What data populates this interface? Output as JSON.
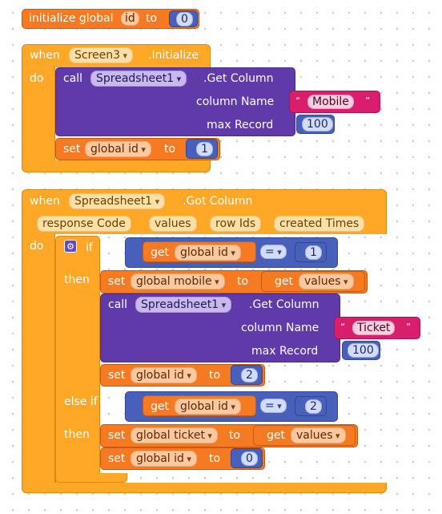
{
  "init": {
    "kw": "initialize global",
    "name": "id",
    "to": "to",
    "value": "0"
  },
  "ev1": {
    "when": "when",
    "component": "Screen3",
    "event": ".Initialize",
    "do": "do",
    "call": {
      "call": "call",
      "component": "Spreadsheet1",
      "method": ".Get Column",
      "arg1": "column Name",
      "arg1_value": "Mobile",
      "arg2": "max Record",
      "arg2_value": "100"
    },
    "set": {
      "set": "set",
      "var": "global id",
      "to": "to",
      "value": "1"
    }
  },
  "ev2": {
    "when": "when",
    "component": "Spreadsheet1",
    "event": ".Got Column",
    "params": [
      "response Code",
      "values",
      "row Ids",
      "created Times"
    ],
    "do": "do",
    "if_kw": "if",
    "then_kw": "then",
    "elseif_kw": "else if",
    "cond1": {
      "get": "get",
      "var": "global id",
      "op": "=",
      "value": "1"
    },
    "set_mobile": {
      "set": "set",
      "var": "global mobile",
      "to": "to",
      "get": "get",
      "param": "values"
    },
    "call": {
      "call": "call",
      "component": "Spreadsheet1",
      "method": ".Get Column",
      "arg1": "column Name",
      "arg1_value": "Ticket",
      "arg2": "max Record",
      "arg2_value": "100"
    },
    "set_id_2": {
      "set": "set",
      "var": "global id",
      "to": "to",
      "value": "2"
    },
    "cond2": {
      "get": "get",
      "var": "global id",
      "op": "=",
      "value": "2"
    },
    "set_ticket": {
      "set": "set",
      "var": "global ticket",
      "to": "to",
      "get": "get",
      "param": "values"
    },
    "set_id_0": {
      "set": "set",
      "var": "global id",
      "to": "to",
      "value": "0"
    }
  },
  "colors": {
    "variables": "#f57a21",
    "events": "#ffa727",
    "components": "#5f3aa8",
    "math": "#4860b9",
    "text": "#d81e6d",
    "control": "#ffa727"
  }
}
